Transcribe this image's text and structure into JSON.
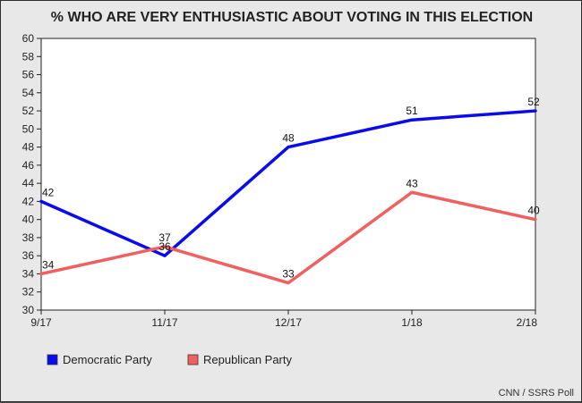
{
  "chart_data": {
    "type": "line",
    "title": "% WHO ARE VERY ENTHUSIASTIC ABOUT VOTING IN THIS ELECTION",
    "categories": [
      "9/17",
      "11/17",
      "12/17",
      "1/18",
      "2/18"
    ],
    "series": [
      {
        "name": "Democratic Party",
        "color": "#0a0aee",
        "values": [
          42,
          36,
          48,
          51,
          52
        ]
      },
      {
        "name": "Republican Party",
        "color": "#f06060",
        "values": [
          34,
          37,
          33,
          43,
          40
        ]
      }
    ],
    "ylim": [
      30,
      60
    ],
    "yticks": [
      30,
      32,
      34,
      36,
      38,
      40,
      42,
      44,
      46,
      48,
      50,
      52,
      54,
      56,
      58,
      60
    ],
    "legend_position": "bottom-left",
    "source": "CNN / SSRS Poll"
  }
}
